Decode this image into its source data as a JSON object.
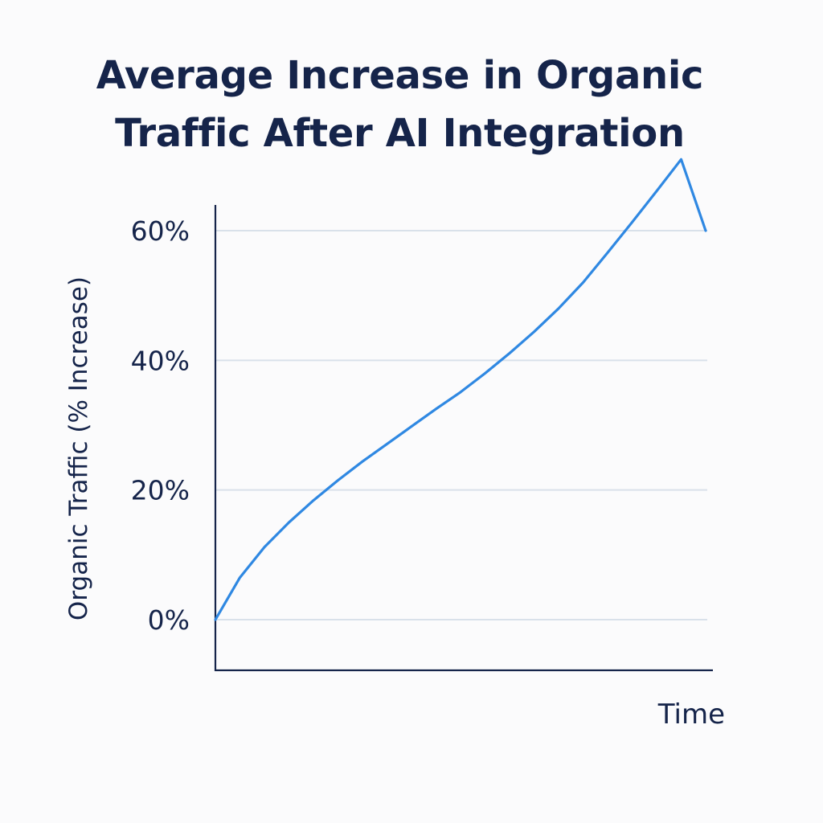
{
  "chart_data": {
    "type": "line",
    "title_lines": [
      "Average Increase in Organic",
      "Traffic After AI Integration"
    ],
    "xlabel": "Time",
    "ylabel": "Organic Traffic (% Increase)",
    "y_ticks": [
      "0%",
      "20%",
      "40%",
      "60%"
    ],
    "y_tick_values": [
      0,
      20,
      40,
      60
    ],
    "ylim": [
      0,
      60
    ],
    "xlim": [
      0,
      1
    ],
    "grid": true,
    "legend": "none",
    "series": [
      {
        "x": [
          0,
          0.05,
          0.1,
          0.15,
          0.2,
          0.25,
          0.3,
          0.35,
          0.4,
          0.45,
          0.5,
          0.55,
          0.6,
          0.65,
          0.7,
          0.72,
          0.75,
          0.8,
          0.85,
          0.9,
          0.95,
          1.0
        ],
        "values": [
          0,
          6.5,
          11.2,
          15.0,
          18.4,
          21.5,
          24.4,
          27.1,
          29.8,
          32.5,
          35.1,
          38.0,
          41.1,
          44.4,
          48.0,
          49.6,
          52.0,
          56.6,
          61.3,
          66.1,
          71.0,
          60.0
        ]
      }
    ],
    "colors": {
      "line": "#2f88e2",
      "axis": "#15244a",
      "grid": "#d9e1ea",
      "text": "#15244a"
    }
  }
}
